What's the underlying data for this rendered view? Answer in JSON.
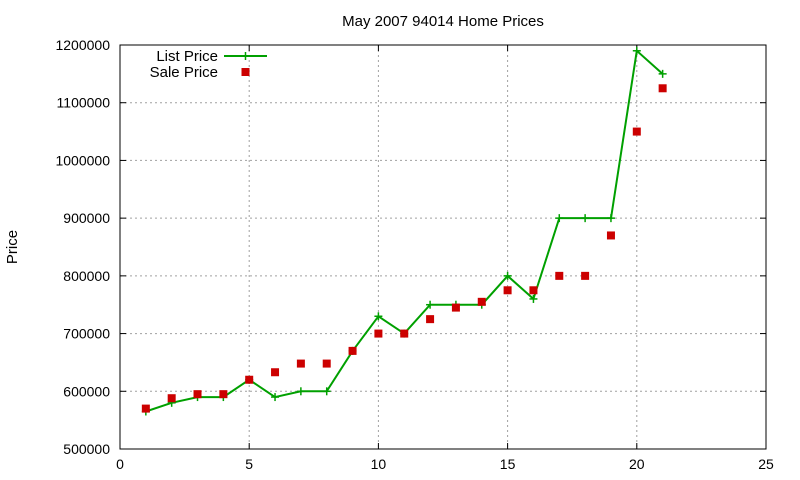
{
  "chart_data": {
    "type": "line",
    "title": "May 2007 94014 Home Prices",
    "xlabel": "",
    "ylabel": "Price",
    "xlim": [
      0,
      25
    ],
    "ylim": [
      500000,
      1200000
    ],
    "x_ticks": [
      0,
      5,
      10,
      15,
      20,
      25
    ],
    "y_ticks": [
      500000,
      600000,
      700000,
      800000,
      900000,
      1000000,
      1100000,
      1200000
    ],
    "grid": true,
    "legend_position": "top-left",
    "series": [
      {
        "name": "List Price",
        "style": "line-with-plus-markers",
        "color": "#00a000",
        "x": [
          1,
          2,
          3,
          4,
          5,
          6,
          7,
          8,
          9,
          10,
          11,
          12,
          13,
          14,
          15,
          16,
          17,
          18,
          19,
          20,
          21
        ],
        "y": [
          565000,
          580000,
          590000,
          590000,
          620000,
          590000,
          600000,
          600000,
          670000,
          730000,
          700000,
          750000,
          750000,
          750000,
          800000,
          760000,
          900000,
          900000,
          900000,
          1190000,
          1150000
        ]
      },
      {
        "name": "Sale Price",
        "style": "square-markers",
        "color": "#cc0000",
        "x": [
          1,
          2,
          3,
          4,
          5,
          6,
          7,
          8,
          9,
          10,
          11,
          12,
          13,
          14,
          15,
          16,
          17,
          18,
          19,
          20,
          21
        ],
        "y": [
          570000,
          588000,
          595000,
          595000,
          620000,
          633000,
          648000,
          648000,
          670000,
          700000,
          700000,
          725000,
          745000,
          755000,
          775000,
          775000,
          800000,
          800000,
          870000,
          1050000,
          1125000
        ]
      }
    ]
  }
}
